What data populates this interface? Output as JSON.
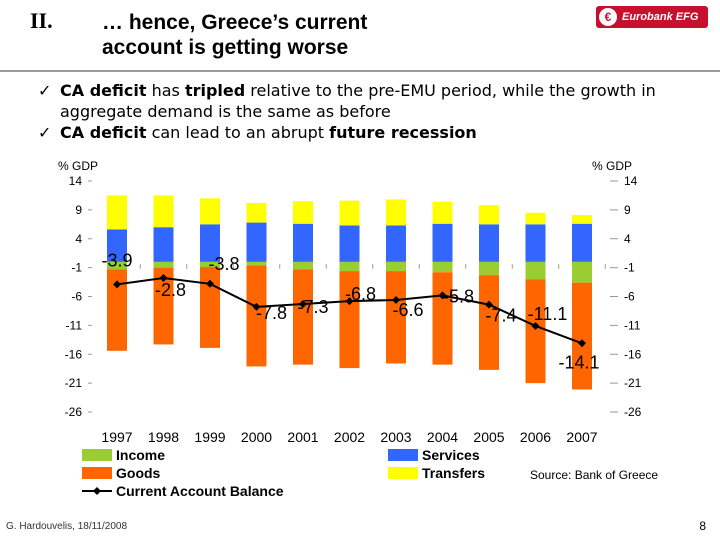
{
  "header": {
    "section_number": "II.",
    "title_line1": "… hence, Greece’s current",
    "title_line2": "account is getting worse",
    "logo_text": "Eurobank EFG"
  },
  "bullets": [
    {
      "check": "ü",
      "parts": [
        {
          "text": "CA deficit",
          "bold": true
        },
        {
          "text": " has ",
          "bold": false
        },
        {
          "text": "tripled",
          "bold": true
        },
        {
          "text": " relative to the pre-EMU period, while the growth in aggregate demand is the same as before",
          "bold": false
        }
      ]
    },
    {
      "check": "ü",
      "parts": [
        {
          "text": "CA deficit",
          "bold": true
        },
        {
          "text": " can lead to an abrupt ",
          "bold": false
        },
        {
          "text": "future recession",
          "bold": true
        }
      ]
    }
  ],
  "chart_data": {
    "type": "bar",
    "stacked": true,
    "categories": [
      "1997",
      "1998",
      "1999",
      "2000",
      "2001",
      "2002",
      "2003",
      "2004",
      "2005",
      "2006",
      "2007"
    ],
    "ylabel_left": "% GDP",
    "ylabel_right": "% GDP",
    "ylim": [
      -26,
      14
    ],
    "yticks": [
      14,
      9,
      4,
      -1,
      -6,
      -11,
      -16,
      -21,
      -26
    ],
    "series": [
      {
        "name": "Income",
        "color": "#9acd32",
        "values": [
          -1.3,
          -1.0,
          -0.9,
          -0.6,
          -1.3,
          -1.6,
          -1.6,
          -1.8,
          -2.3,
          -3.0,
          -3.6
        ]
      },
      {
        "name": "Goods",
        "color": "#ff6600",
        "values": [
          -14.1,
          -13.3,
          -14.0,
          -17.5,
          -16.5,
          -16.8,
          -16.0,
          -16.0,
          -16.4,
          -18.0,
          -18.5
        ]
      },
      {
        "name": "Services",
        "color": "#3366ff",
        "values": [
          5.6,
          6.0,
          6.5,
          6.8,
          6.6,
          6.3,
          6.3,
          6.6,
          6.5,
          6.5,
          6.6
        ]
      },
      {
        "name": "Transfers",
        "color": "#ffff00",
        "values": [
          5.9,
          5.5,
          4.5,
          3.4,
          3.9,
          4.3,
          4.5,
          3.8,
          3.3,
          2.0,
          1.5
        ]
      }
    ],
    "line": {
      "name": "Current Account Balance",
      "color": "#000000",
      "values": [
        -3.9,
        -2.8,
        -3.8,
        -7.8,
        -7.3,
        -6.8,
        -6.6,
        -5.8,
        -7.4,
        -11.1,
        -14.1
      ]
    },
    "value_labels": [
      "-3.9",
      "-2.8",
      "-3.8",
      "-7.8",
      "-7.3",
      "-6.8",
      "-6.6",
      "-5.8",
      "-7.4",
      "-11.1",
      "-14.1"
    ]
  },
  "source": "Source: Bank of Greece",
  "footer": "G. Hardouvelis, 18/11/2008",
  "page_number": "8"
}
